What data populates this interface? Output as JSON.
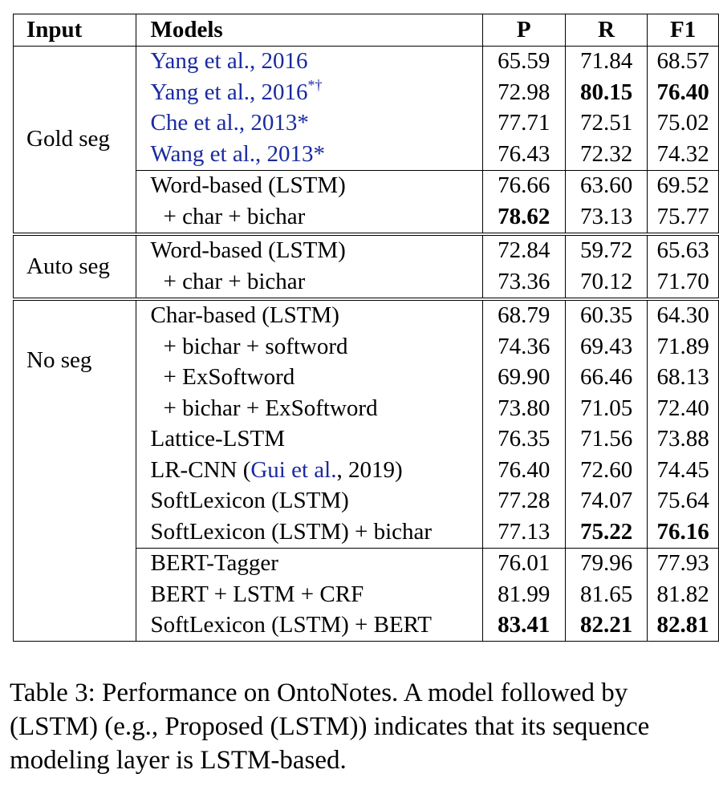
{
  "table": {
    "headers": {
      "input": "Input",
      "models": "Models",
      "p": "P",
      "r": "R",
      "f1": "F1"
    },
    "groups": [
      {
        "input": "Gold seg",
        "blocks": [
          [
            {
              "model": "Yang et al., 2016",
              "cite": true,
              "p": "65.59",
              "r": "71.84",
              "f1": "68.57"
            },
            {
              "model": "Yang et al., 2016",
              "cite": true,
              "sup": "*†",
              "p": "72.98",
              "r": "80.15",
              "f1": "76.40",
              "bold": [
                "r",
                "f1"
              ]
            },
            {
              "model": "Che et al., 2013",
              "cite": true,
              "suffix": "*",
              "p": "77.71",
              "r": "72.51",
              "f1": "75.02"
            },
            {
              "model": "Wang et al., 2013",
              "cite": true,
              "suffix": "*",
              "p": "76.43",
              "r": "72.32",
              "f1": "74.32"
            }
          ],
          [
            {
              "model": "Word-based (LSTM)",
              "p": "76.66",
              "r": "63.60",
              "f1": "69.52"
            },
            {
              "model": "+ char + bichar",
              "indent": true,
              "p": "78.62",
              "r": "73.13",
              "f1": "75.77",
              "bold": [
                "p"
              ]
            }
          ]
        ]
      },
      {
        "input": "Auto seg",
        "blocks": [
          [
            {
              "model": "Word-based (LSTM)",
              "p": "72.84",
              "r": "59.72",
              "f1": "65.63"
            },
            {
              "model": "+ char + bichar",
              "indent": true,
              "p": "73.36",
              "r": "70.12",
              "f1": "71.70"
            }
          ]
        ]
      },
      {
        "input": "No seg",
        "blocks": [
          [
            {
              "model": "Char-based (LSTM)",
              "p": "68.79",
              "r": "60.35",
              "f1": "64.30"
            },
            {
              "model": "+ bichar + softword",
              "indent": true,
              "p": "74.36",
              "r": "69.43",
              "f1": "71.89"
            },
            {
              "model": "+ ExSoftword",
              "indent": true,
              "p": "69.90",
              "r": "66.46",
              "f1": "68.13"
            },
            {
              "model": "+ bichar + ExSoftword",
              "indent": true,
              "p": "73.80",
              "r": "71.05",
              "f1": "72.40"
            },
            {
              "model": "Lattice-LSTM",
              "p": "76.35",
              "r": "71.56",
              "f1": "73.88"
            },
            {
              "model_prefix": "LR-CNN (",
              "model_cite": "Gui et al.",
              "model_suffix": ", 2019)",
              "p": "76.40",
              "r": "72.60",
              "f1": "74.45"
            },
            {
              "model": "SoftLexicon (LSTM)",
              "p": "77.28",
              "r": "74.07",
              "f1": "75.64"
            },
            {
              "model": "SoftLexicon (LSTM) + bichar",
              "p": "77.13",
              "r": "75.22",
              "f1": "76.16",
              "bold": [
                "r",
                "f1"
              ]
            }
          ],
          [
            {
              "model": "BERT-Tagger",
              "p": "76.01",
              "r": "79.96",
              "f1": "77.93"
            },
            {
              "model": "BERT + LSTM + CRF",
              "p": "81.99",
              "r": "81.65",
              "f1": "81.82"
            },
            {
              "model": "SoftLexicon (LSTM) + BERT",
              "p": "83.41",
              "r": "82.21",
              "f1": "82.81",
              "bold": [
                "p",
                "r",
                "f1"
              ]
            }
          ]
        ]
      }
    ]
  },
  "caption": "Table 3: Performance on OntoNotes. A model followed by (LSTM) (e.g., Proposed (LSTM)) indicates that its sequence modeling layer is LSTM-based."
}
